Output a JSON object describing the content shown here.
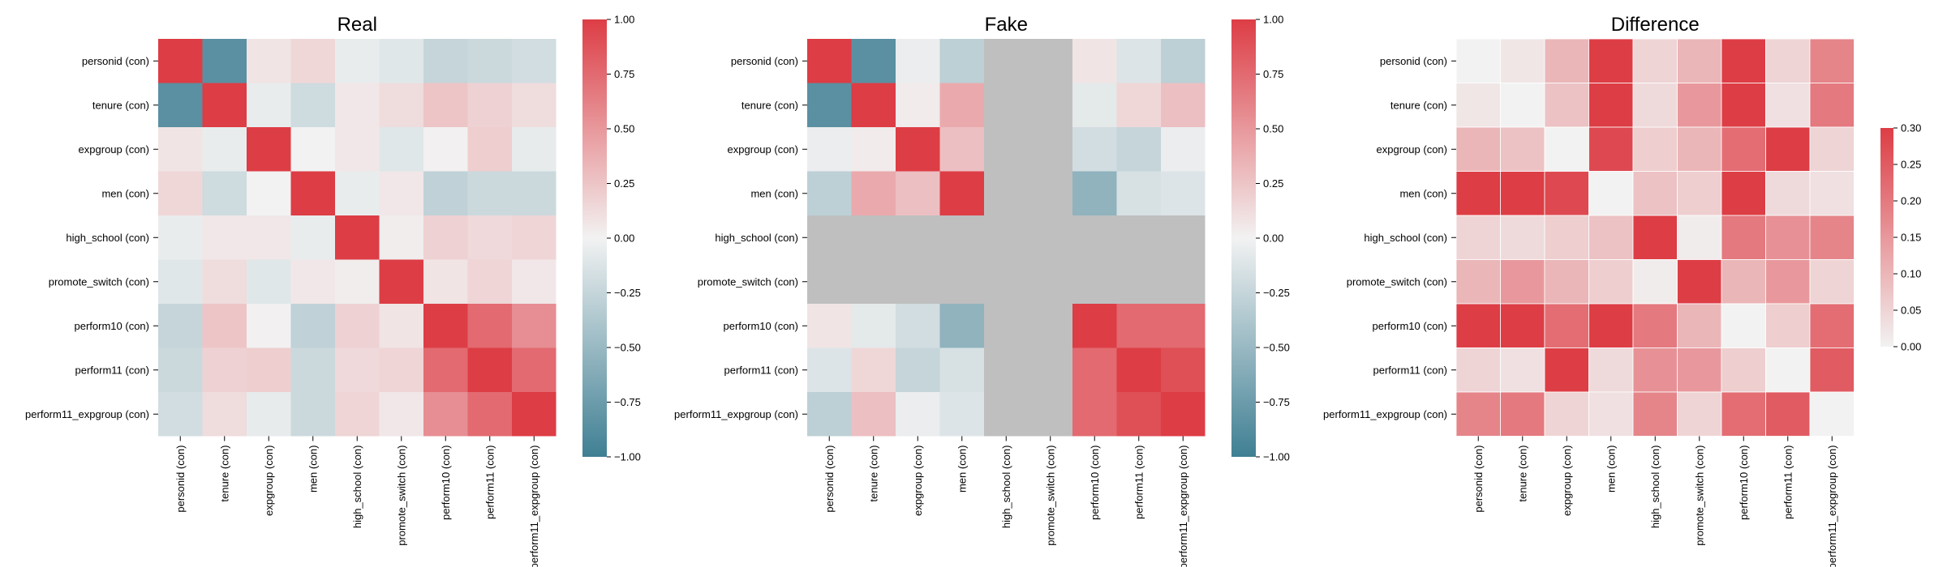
{
  "figure": {
    "background": "#ffffff",
    "missing_color": "#bfbfbf",
    "cmap_diverging": {
      "low": "#3f7f93",
      "mid": "#f2f2f2",
      "high": "#dd3d45"
    },
    "cmap_sequential": {
      "low": "#f2f2f2",
      "high": "#dd3d45"
    }
  },
  "chart_data": [
    {
      "type": "heatmap",
      "title": "Real",
      "rows": [
        "personid (con)",
        "tenure (con)",
        "expgroup (con)",
        "men (con)",
        "high_school (con)",
        "promote_switch (con)",
        "perform10 (con)",
        "perform11 (con)",
        "perform11_expgroup (con)"
      ],
      "cols": [
        "personid (con)",
        "tenure (con)",
        "expgroup (con)",
        "men (con)",
        "high_school (con)",
        "promote_switch (con)",
        "perform10 (con)",
        "perform11 (con)",
        "perform11_expgroup (con)"
      ],
      "values": [
        [
          1.0,
          -0.85,
          0.08,
          0.15,
          -0.05,
          -0.1,
          -0.25,
          -0.22,
          -0.18
        ],
        [
          -0.85,
          1.0,
          -0.05,
          -0.2,
          0.06,
          0.12,
          0.25,
          0.18,
          0.12
        ],
        [
          0.08,
          -0.05,
          1.0,
          0.0,
          0.06,
          -0.1,
          0.01,
          0.2,
          -0.06
        ],
        [
          0.15,
          -0.2,
          0.0,
          1.0,
          -0.05,
          0.06,
          -0.28,
          -0.22,
          -0.22
        ],
        [
          -0.05,
          0.06,
          0.06,
          -0.05,
          1.0,
          0.03,
          0.18,
          0.14,
          0.16
        ],
        [
          -0.1,
          0.12,
          -0.1,
          0.06,
          0.03,
          1.0,
          0.08,
          0.16,
          0.06
        ],
        [
          -0.25,
          0.25,
          0.01,
          -0.28,
          0.18,
          0.08,
          1.0,
          0.75,
          0.55
        ],
        [
          -0.22,
          0.18,
          0.2,
          -0.22,
          0.14,
          0.16,
          0.75,
          1.0,
          0.75
        ],
        [
          -0.18,
          0.12,
          -0.06,
          -0.22,
          0.16,
          0.06,
          0.55,
          0.75,
          1.0
        ]
      ],
      "colorbar": {
        "min": -1.0,
        "max": 1.0,
        "ticks": [
          "1.00",
          "0.75",
          "0.50",
          "0.25",
          "0.00",
          "−0.25",
          "−0.50",
          "−0.75",
          "−1.00"
        ]
      },
      "cmap": "diverging"
    },
    {
      "type": "heatmap",
      "title": "Fake",
      "rows": [
        "personid (con)",
        "tenure (con)",
        "expgroup (con)",
        "men (con)",
        "high_school (con)",
        "promote_switch (con)",
        "perform10 (con)",
        "perform11 (con)",
        "perform11_expgroup (con)"
      ],
      "cols": [
        "personid (con)",
        "tenure (con)",
        "expgroup (con)",
        "men (con)",
        "high_school (con)",
        "promote_switch (con)",
        "perform10 (con)",
        "perform11 (con)",
        "perform11_expgroup (con)"
      ],
      "values": [
        [
          1.0,
          -0.85,
          -0.04,
          -0.3,
          null,
          null,
          0.08,
          -0.12,
          -0.3
        ],
        [
          -0.85,
          1.0,
          0.04,
          0.4,
          null,
          null,
          -0.08,
          0.15,
          0.28
        ],
        [
          -0.04,
          0.04,
          1.0,
          0.28,
          null,
          null,
          -0.18,
          -0.25,
          -0.04
        ],
        [
          -0.3,
          0.4,
          0.28,
          1.0,
          null,
          null,
          -0.55,
          -0.15,
          -0.12
        ],
        [
          null,
          null,
          null,
          null,
          null,
          null,
          null,
          null,
          null
        ],
        [
          null,
          null,
          null,
          null,
          null,
          null,
          null,
          null,
          null
        ],
        [
          0.08,
          -0.08,
          -0.18,
          -0.55,
          null,
          null,
          1.0,
          0.75,
          0.75
        ],
        [
          -0.12,
          0.15,
          -0.25,
          -0.15,
          null,
          null,
          0.75,
          1.0,
          0.9
        ],
        [
          -0.3,
          0.28,
          -0.04,
          -0.12,
          null,
          null,
          0.75,
          0.9,
          1.0
        ]
      ],
      "colorbar": {
        "min": -1.0,
        "max": 1.0,
        "ticks": [
          "1.00",
          "0.75",
          "0.50",
          "0.25",
          "0.00",
          "−0.25",
          "−0.50",
          "−0.75",
          "−1.00"
        ]
      },
      "cmap": "diverging"
    },
    {
      "type": "heatmap",
      "title": "Difference",
      "rows": [
        "personid (con)",
        "tenure (con)",
        "expgroup (con)",
        "men (con)",
        "high_school (con)",
        "promote_switch (con)",
        "perform10 (con)",
        "perform11 (con)",
        "perform11_expgroup (con)"
      ],
      "cols": [
        "personid (con)",
        "tenure (con)",
        "expgroup (con)",
        "men (con)",
        "high_school (con)",
        "promote_switch (con)",
        "perform10 (con)",
        "perform11 (con)",
        "perform11_expgroup (con)"
      ],
      "values": [
        [
          0.0,
          0.02,
          0.1,
          0.3,
          0.05,
          0.1,
          0.3,
          0.05,
          0.18
        ],
        [
          0.02,
          0.0,
          0.08,
          0.3,
          0.04,
          0.15,
          0.3,
          0.03,
          0.2
        ],
        [
          0.1,
          0.08,
          0.0,
          0.28,
          0.06,
          0.1,
          0.22,
          0.3,
          0.05
        ],
        [
          0.3,
          0.3,
          0.28,
          0.0,
          0.08,
          0.06,
          0.3,
          0.04,
          0.03
        ],
        [
          0.05,
          0.04,
          0.06,
          0.08,
          0.3,
          0.01,
          0.2,
          0.16,
          0.18
        ],
        [
          0.1,
          0.15,
          0.1,
          0.06,
          0.01,
          0.3,
          0.1,
          0.15,
          0.05
        ],
        [
          0.3,
          0.3,
          0.22,
          0.3,
          0.2,
          0.1,
          0.0,
          0.06,
          0.22
        ],
        [
          0.05,
          0.03,
          0.3,
          0.04,
          0.16,
          0.15,
          0.06,
          0.0,
          0.25
        ],
        [
          0.18,
          0.2,
          0.05,
          0.03,
          0.18,
          0.05,
          0.22,
          0.25,
          0.0
        ]
      ],
      "colorbar": {
        "min": 0.0,
        "max": 0.3,
        "ticks": [
          "0.30",
          "0.25",
          "0.20",
          "0.15",
          "0.10",
          "0.05",
          "0.00"
        ]
      },
      "cmap": "sequential"
    }
  ]
}
